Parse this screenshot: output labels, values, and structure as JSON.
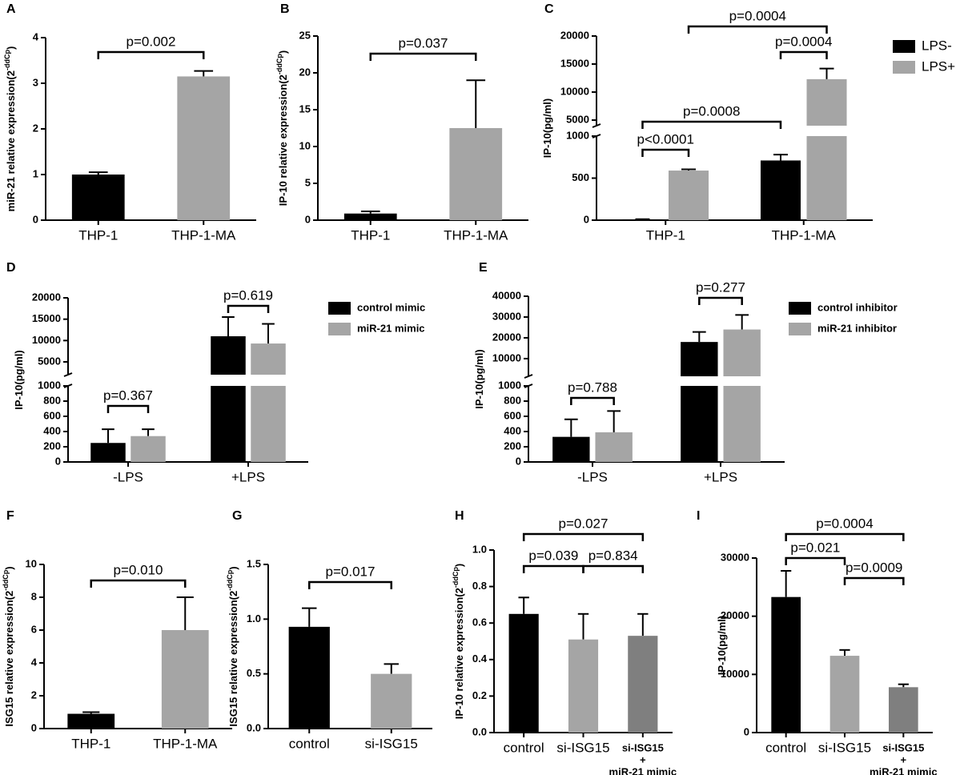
{
  "chart_data": [
    {
      "type": "bar",
      "label": "A",
      "ylabel": [
        "miR-21 relative expression(2",
        "-ddCp",
        ")"
      ],
      "categories": [
        "THP-1",
        "THP-1-MA"
      ],
      "values": [
        1.0,
        3.15
      ],
      "errors": [
        0.05,
        0.12
      ],
      "colors": [
        "#000000",
        "#a5a5a5"
      ],
      "ylim": [
        0,
        4
      ],
      "yticks": [
        0,
        1,
        2,
        3,
        4
      ],
      "annotations": [
        "p=0.002"
      ]
    },
    {
      "type": "bar",
      "label": "B",
      "ylabel": [
        "IP-10 relative expression(2",
        "-ddCp",
        ")"
      ],
      "categories": [
        "THP-1",
        "THP-1-MA"
      ],
      "values": [
        0.9,
        12.5
      ],
      "errors": [
        0.3,
        6.5
      ],
      "colors": [
        "#000000",
        "#a5a5a5"
      ],
      "ylim": [
        0,
        25
      ],
      "yticks": [
        0,
        5,
        10,
        15,
        20,
        25
      ],
      "annotations": [
        "p=0.037"
      ]
    },
    {
      "type": "bar",
      "label": "C",
      "ylabel": [
        "IP-10(pg/ml)"
      ],
      "categories": [
        "THP-1",
        "THP-1-MA"
      ],
      "series": [
        {
          "name": "LPS-",
          "color": "#000000",
          "values": [
            10,
            710
          ],
          "errors": [
            2,
            70
          ]
        },
        {
          "name": "LPS+",
          "color": "#a5a5a5",
          "values": [
            590,
            12300
          ],
          "errors": [
            15,
            1900
          ]
        }
      ],
      "ylim": [
        0,
        20000
      ],
      "ybreak": [
        1000,
        4000
      ],
      "yticks": [
        0,
        500,
        1000,
        5000,
        10000,
        15000,
        20000
      ],
      "legend": "right",
      "annotations": [
        "p=0.0004",
        "p=0.0004",
        "p=0.0008",
        "p<0.0001"
      ]
    },
    {
      "type": "bar",
      "label": "D",
      "ylabel": [
        "IP-10(pg/ml)"
      ],
      "categories": [
        "-LPS",
        "+LPS"
      ],
      "series": [
        {
          "name": "control mimic",
          "color": "#000000",
          "values": [
            250,
            11000
          ],
          "errors": [
            180,
            4500
          ]
        },
        {
          "name": "miR-21 mimic",
          "color": "#a5a5a5",
          "values": [
            340,
            9300
          ],
          "errors": [
            90,
            4600
          ]
        }
      ],
      "ylim": [
        0,
        20000
      ],
      "ybreak": [
        1000,
        2000
      ],
      "yticks": [
        0,
        200,
        400,
        600,
        800,
        1000,
        5000,
        10000,
        15000,
        20000
      ],
      "legend": "right",
      "annotations": [
        "p=0.367",
        "p=0.619"
      ]
    },
    {
      "type": "bar",
      "label": "E",
      "ylabel": [
        "IP-10(pg/ml)"
      ],
      "categories": [
        "-LPS",
        "+LPS"
      ],
      "series": [
        {
          "name": "control inhibitor",
          "color": "#000000",
          "values": [
            330,
            18000
          ],
          "errors": [
            230,
            4800
          ]
        },
        {
          "name": "miR-21 inhibitor",
          "color": "#a5a5a5",
          "values": [
            390,
            24000
          ],
          "errors": [
            280,
            7000
          ]
        }
      ],
      "ylim": [
        0,
        40000
      ],
      "ybreak": [
        1000,
        1500
      ],
      "yticks": [
        0,
        200,
        400,
        600,
        800,
        1000,
        10000,
        20000,
        30000,
        40000
      ],
      "legend": "right",
      "annotations": [
        "p=0.788",
        "p=0.277"
      ]
    },
    {
      "type": "bar",
      "label": "F",
      "ylabel": [
        "ISG15 relative expression(2",
        "-ddCp",
        ")"
      ],
      "categories": [
        "THP-1",
        "THP-1-MA"
      ],
      "values": [
        0.9,
        6.0
      ],
      "errors": [
        0.1,
        2.0
      ],
      "colors": [
        "#000000",
        "#a5a5a5"
      ],
      "ylim": [
        0,
        10
      ],
      "yticks": [
        0,
        2,
        4,
        6,
        8,
        10
      ],
      "annotations": [
        "p=0.010"
      ]
    },
    {
      "type": "bar",
      "label": "G",
      "ylabel": [
        "ISG15 relative expression(2",
        "-ddCp",
        ")"
      ],
      "categories": [
        "control",
        "si-ISG15"
      ],
      "values": [
        0.93,
        0.5
      ],
      "errors": [
        0.17,
        0.09
      ],
      "colors": [
        "#000000",
        "#a5a5a5"
      ],
      "ylim": [
        0,
        1.5
      ],
      "yticks": [
        {
          "value": 0,
          "label": "0.0"
        },
        0.5,
        {
          "value": 1,
          "label": "1.0"
        },
        1.5
      ],
      "annotations": [
        "p=0.017"
      ]
    },
    {
      "type": "bar",
      "label": "H",
      "ylabel": [
        "IP-10 relative expression(2",
        "-ddCp",
        ")"
      ],
      "categories": [
        "control",
        "si-ISG15",
        [
          "si-ISG15",
          "+",
          "miR-21 mimic"
        ]
      ],
      "values": [
        0.65,
        0.51,
        0.53
      ],
      "errors": [
        0.09,
        0.14,
        0.12
      ],
      "colors": [
        "#000000",
        "#a5a5a5",
        "#7f7f7f"
      ],
      "ylim": [
        0,
        1
      ],
      "yticks": [
        {
          "value": 0,
          "label": "0.0"
        },
        0.2,
        0.4,
        0.6,
        0.8,
        {
          "value": 1,
          "label": "1.0"
        }
      ],
      "annotations": [
        "p=0.027",
        "p=0.039",
        "p=0.834"
      ]
    },
    {
      "type": "bar",
      "label": "I",
      "ylabel": [
        "IP-10(pg/ml)"
      ],
      "categories": [
        "control",
        "si-ISG15",
        [
          "si-ISG15",
          "+",
          "miR-21 mimic"
        ]
      ],
      "values": [
        23300,
        13200,
        7800
      ],
      "errors": [
        4500,
        1000,
        500
      ],
      "colors": [
        "#000000",
        "#a5a5a5",
        "#7f7f7f"
      ],
      "ylim": [
        0,
        30000
      ],
      "yticks": [
        0,
        10000,
        20000,
        30000
      ],
      "annotations": [
        "p=0.0004",
        "p=0.021",
        "p=0.0009"
      ]
    }
  ]
}
